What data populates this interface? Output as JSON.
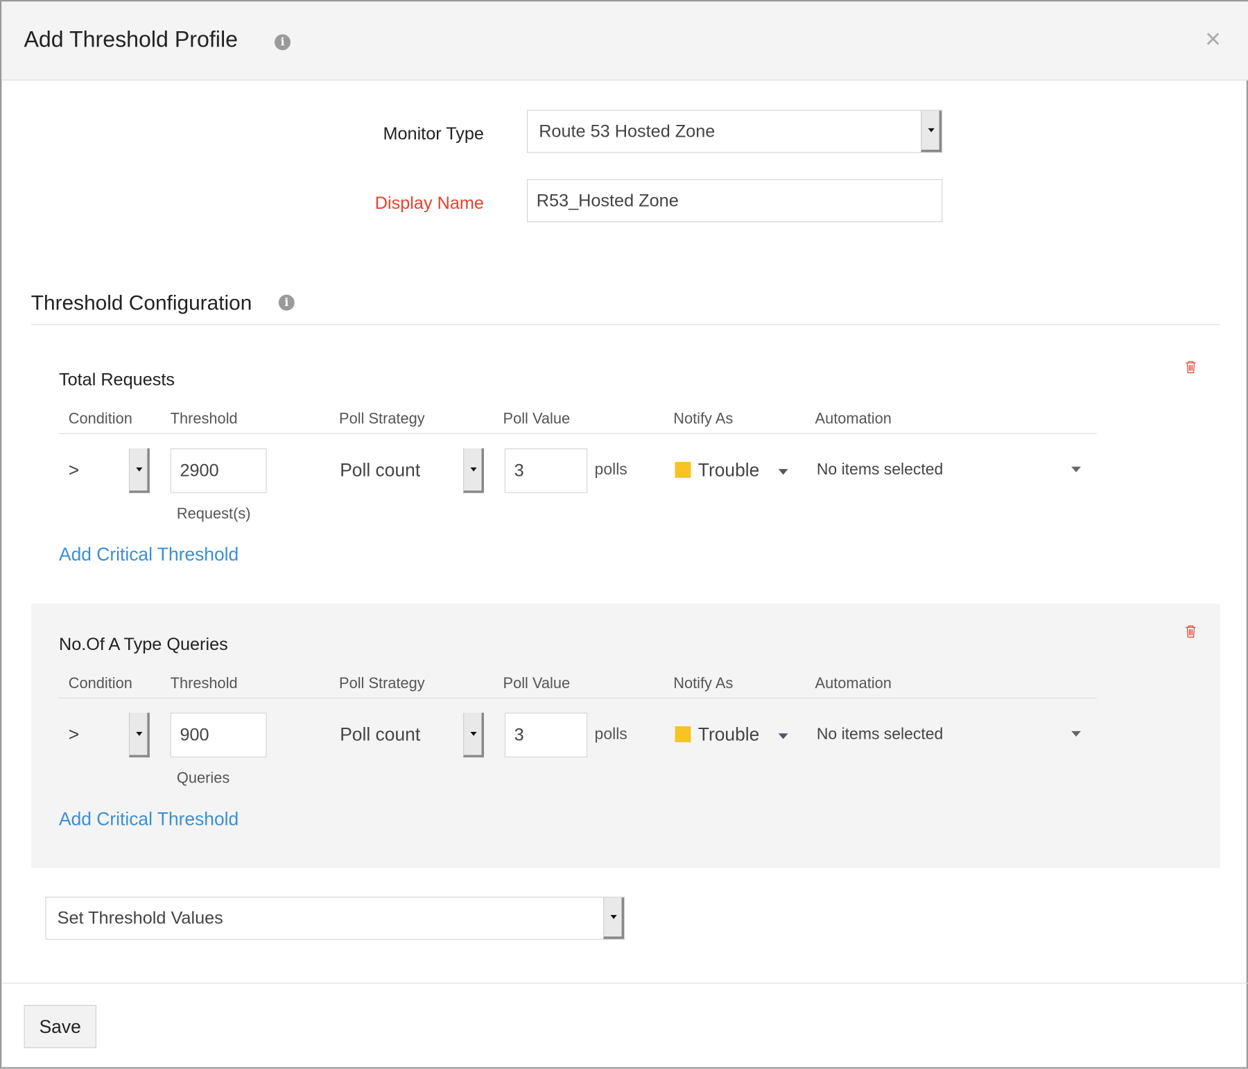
{
  "dialog": {
    "title": "Add Threshold Profile",
    "close_label": "×",
    "info_glyph": "i"
  },
  "form": {
    "monitor_type_label": "Monitor Type",
    "monitor_type_value": "Route 53 Hosted Zone",
    "display_name_label": "Display Name",
    "display_name_value": "R53_Hosted Zone",
    "display_name_color": "#e8412c"
  },
  "threshold_config": {
    "title": "Threshold Configuration",
    "columns": [
      "Condition",
      "Threshold",
      "Poll Strategy",
      "Poll Value",
      "Notify As",
      "Automation"
    ],
    "sections": [
      {
        "title": "Total Requests",
        "condition": ">",
        "threshold": "2900",
        "unit": "Request(s)",
        "poll_strategy": "Poll count",
        "poll_value": "3",
        "poll_unit": "polls",
        "notify_as": "Trouble",
        "automation": "No items selected",
        "add_link": "Add Critical Threshold"
      },
      {
        "title": "No.Of A Type Queries",
        "condition": ">",
        "threshold": "900",
        "unit": "Queries",
        "poll_strategy": "Poll count",
        "poll_value": "3",
        "poll_unit": "polls",
        "notify_as": "Trouble",
        "automation": "No items selected",
        "add_link": "Add Critical Threshold"
      }
    ],
    "set_values_select": "Set Threshold Values"
  },
  "footer": {
    "save_label": "Save"
  },
  "colors": {
    "link": "#3a8fd6",
    "trouble": "#f7c325",
    "trash": "#e8412c"
  }
}
